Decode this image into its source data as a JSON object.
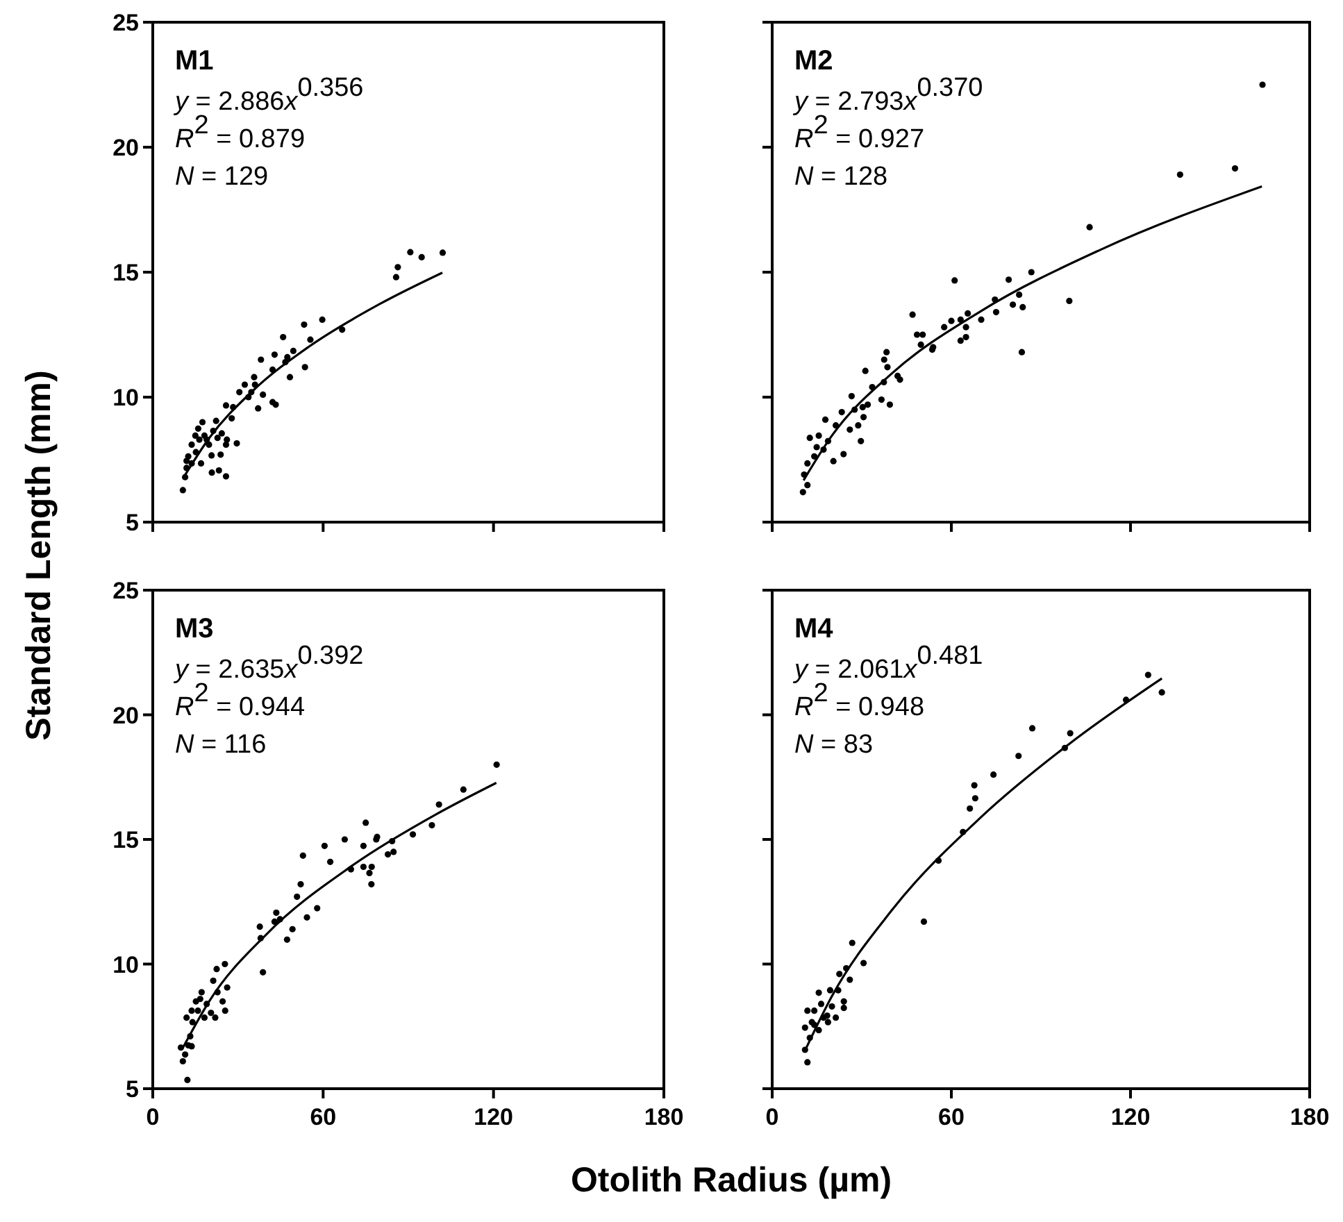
{
  "chart_data": [
    {
      "type": "scatter",
      "title": "M1",
      "xlabel": "Otolith Radius (µm)",
      "ylabel": "Standard Length (mm)",
      "annotations": [
        "y = 2.886x$^{0.356}$",
        "R$^{2}$ = 0.879",
        "N = 129"
      ],
      "xlim": [
        0,
        180
      ],
      "xticks": [
        0,
        60,
        120,
        180
      ],
      "ylim": [
        5,
        25
      ],
      "yticks": [
        5,
        10,
        15,
        20,
        25
      ],
      "tick_labels": "y",
      "marker": "circle",
      "series": [
        {
          "type": "scatter",
          "color": "#000000",
          "x": [
            102.1,
            90.7,
            94.7,
            86.3,
            85.7,
            59.7,
            53.3,
            66.7,
            55.5,
            45.9,
            49.5,
            47.4,
            46.7,
            53.6,
            42.9,
            38.1,
            48.3,
            42.2,
            35.7,
            36,
            32.4,
            30.5,
            34.7,
            38.8,
            37.1,
            42.2,
            43.3,
            33.7,
            25.8,
            28.3,
            27.8,
            29.6,
            25.8,
            25.8,
            23.3,
            20.8,
            23.9,
            20.7,
            22.3,
            17.5,
            16,
            15,
            18.2,
            21.3,
            22.8,
            19.8,
            13.7,
            15.2,
            12.5,
            13.7,
            11.9,
            11.4,
            10.6,
            17,
            19,
            11.9,
            16.4,
            24.3,
            26.1
          ],
          "values": [
            15.78,
            15.8,
            15.6,
            15.2,
            14.8,
            13.1,
            12.9,
            12.7,
            12.3,
            12.4,
            11.85,
            11.6,
            11.4,
            11.2,
            11.7,
            11.5,
            10.8,
            11.1,
            10.8,
            10.5,
            10.5,
            10.2,
            10.2,
            10.1,
            9.55,
            9.8,
            9.7,
            10,
            9.67,
            9.6,
            9.15,
            8.15,
            8.1,
            6.83,
            7.07,
            6.98,
            7.7,
            7.67,
            9.05,
            9,
            8.74,
            8.46,
            8.46,
            8.65,
            8.37,
            8.1,
            8.1,
            7.8,
            7.63,
            7.35,
            7.17,
            6.8,
            6.28,
            7.35,
            8.3,
            7.45,
            8.3,
            8.55,
            8.3
          ]
        },
        {
          "type": "line",
          "color": "#000000",
          "marker": "none",
          "x": [
            10.6,
            20,
            35,
            55,
            80,
            102
          ],
          "values": [
            6.74,
            8.38,
            10.23,
            12.02,
            13.73,
            14.98
          ]
        }
      ]
    },
    {
      "type": "scatter",
      "title": "M2",
      "annotations": [
        "y = 2.793x$^{0.370}$",
        "R$^{2}$ = 0.927",
        "N = 128"
      ],
      "xlim": [
        0,
        180
      ],
      "xticks": [
        0,
        60,
        120,
        180
      ],
      "ylim": [
        5,
        25
      ],
      "yticks": [
        5,
        10,
        15,
        20,
        25
      ],
      "tick_labels": false,
      "marker": "circle",
      "series": [
        {
          "type": "scatter",
          "color": "#000000",
          "x": [
            164.2,
            155,
            136.6,
            106.3,
            99.5,
            86.8,
            79.2,
            82.7,
            80.6,
            83.9,
            83.6,
            74.6,
            75,
            70,
            65.5,
            61.1,
            60,
            63.1,
            57.6,
            64.9,
            63.1,
            64.9,
            47,
            48.5,
            50.4,
            49.8,
            53.9,
            53.6,
            38.3,
            37.5,
            38.6,
            42,
            42.8,
            37.4,
            33.5,
            31.2,
            36.6,
            39.4,
            32,
            30.3,
            26.6,
            27.6,
            30.6,
            28.8,
            29.7,
            26,
            23.3,
            21.3,
            17.8,
            15.6,
            12.6,
            18.7,
            17.2,
            20.5,
            23.9,
            14.1,
            11.8,
            10.7,
            11.8,
            10.3,
            14.9
          ],
          "values": [
            22.5,
            19.15,
            18.9,
            16.8,
            13.85,
            15,
            14.7,
            14.1,
            13.7,
            13.6,
            11.8,
            13.9,
            13.4,
            13.1,
            13.35,
            14.67,
            13.05,
            13.1,
            12.8,
            12.8,
            12.26,
            12.4,
            13.3,
            12.5,
            12.5,
            12.1,
            12,
            11.9,
            11.8,
            11.5,
            11.2,
            10.85,
            10.7,
            10.6,
            10.4,
            11.05,
            9.9,
            9.7,
            9.7,
            9.6,
            10.04,
            9.5,
            9.2,
            8.87,
            8.24,
            8.7,
            9.4,
            8.87,
            9.1,
            8.46,
            8.37,
            8.24,
            7.9,
            7.44,
            7.72,
            7.63,
            7.35,
            6.9,
            6.48,
            6.2,
            8
          ]
        },
        {
          "type": "line",
          "color": "#000000",
          "marker": "none",
          "x": [
            10.5,
            20,
            40,
            70,
            110,
            164
          ],
          "values": [
            6.67,
            8.46,
            10.94,
            13.45,
            15.9,
            18.43
          ]
        }
      ]
    },
    {
      "type": "scatter",
      "title": "M3",
      "annotations": [
        "y = 2.635x$^{0.392}$",
        "R$^{2}$ = 0.944",
        "N = 116"
      ],
      "xlim": [
        0,
        180
      ],
      "xticks": [
        0,
        60,
        120,
        180
      ],
      "ylim": [
        5,
        25
      ],
      "yticks": [
        5,
        10,
        15,
        20,
        25
      ],
      "marker": "circle",
      "series": [
        {
          "type": "scatter",
          "color": "#000000",
          "x": [
            121.1,
            109.4,
            100.8,
            98.3,
            91.6,
            84.3,
            84.8,
            82.8,
            79,
            78.7,
            75,
            74.2,
            74.2,
            77.1,
            76.3,
            77,
            69.8,
            67.6,
            60.5,
            62.5,
            52.9,
            52.1,
            50.8,
            57.9,
            54.3,
            49.2,
            47.3,
            43.5,
            42.9,
            44.8,
            37.7,
            38.8,
            38,
            25.4,
            26.2,
            25.5,
            24.6,
            22.8,
            22.5,
            21.3,
            16.7,
            15.2,
            19,
            20.5,
            18.2,
            15.9,
            13.7,
            11.9,
            14,
            13.2,
            12.5,
            11.4,
            10.6,
            12.2,
            9.9,
            13.7,
            17.2,
            22
          ],
          "values": [
            18,
            17,
            16.4,
            15.57,
            15.2,
            14.93,
            14.5,
            14.4,
            15.1,
            15,
            15.67,
            14.74,
            13.9,
            13.9,
            13.65,
            13.2,
            13.8,
            15,
            14.74,
            14.1,
            14.35,
            13.2,
            12.7,
            12.24,
            11.87,
            11.4,
            10.98,
            12.06,
            11.7,
            11.8,
            11.5,
            9.67,
            11.04,
            10,
            9.06,
            8.13,
            8.5,
            8.87,
            9.8,
            9.33,
            8.6,
            8.5,
            8.4,
            8.04,
            7.85,
            8.13,
            8.13,
            7.85,
            7.67,
            7.1,
            6.74,
            6.37,
            6.1,
            5.35,
            6.65,
            6.7,
            8.87,
            7.85
          ]
        },
        {
          "type": "line",
          "color": "#000000",
          "marker": "none",
          "x": [
            10.5,
            20,
            40,
            70,
            100,
            121
          ],
          "values": [
            6.62,
            8.53,
            11.19,
            13.93,
            16.02,
            17.27
          ]
        }
      ]
    },
    {
      "type": "scatter",
      "title": "M4",
      "annotations": [
        "y = 2.061x$^{0.481}$",
        "R$^{2}$ = 0.948",
        "N = 83"
      ],
      "xlim": [
        0,
        180
      ],
      "xticks": [
        0,
        60,
        120,
        180
      ],
      "ylim": [
        5,
        25
      ],
      "yticks": [
        5,
        10,
        15,
        20,
        25
      ],
      "tick_labels": "x",
      "marker": "circle",
      "series": [
        {
          "type": "scatter",
          "color": "#000000",
          "x": [
            125.9,
            130.5,
            118.5,
            99.8,
            98,
            87.1,
            82.5,
            74.1,
            67.7,
            68,
            66.2,
            63.9,
            55.7,
            50.8,
            26.8,
            30.6,
            24.8,
            26,
            22.5,
            22.1,
            24,
            24,
            21.3,
            20,
            18.4,
            15.6,
            16.4,
            14.1,
            11.8,
            13.3,
            11,
            15.6,
            12.6,
            11,
            11.8,
            17.2,
            19.4,
            18.7,
            14.1
          ],
          "values": [
            21.6,
            20.9,
            20.6,
            19.26,
            18.67,
            19.46,
            18.35,
            17.6,
            17.17,
            16.65,
            16.24,
            15.3,
            14.15,
            11.7,
            10.85,
            10.04,
            9.83,
            9.37,
            9.6,
            8.95,
            8.5,
            8.24,
            7.85,
            8.3,
            7.93,
            8.85,
            8.4,
            8.13,
            8.13,
            7.67,
            7.45,
            7.35,
            7.04,
            6.56,
            6.06,
            7.85,
            8.95,
            7.67,
            7.56
          ]
        },
        {
          "type": "line",
          "color": "#000000",
          "marker": "none",
          "x": [
            11,
            20,
            40,
            70,
            100,
            130.5
          ],
          "values": [
            6.53,
            8.71,
            12.15,
            15.9,
            18.88,
            21.46
          ]
        }
      ]
    }
  ]
}
